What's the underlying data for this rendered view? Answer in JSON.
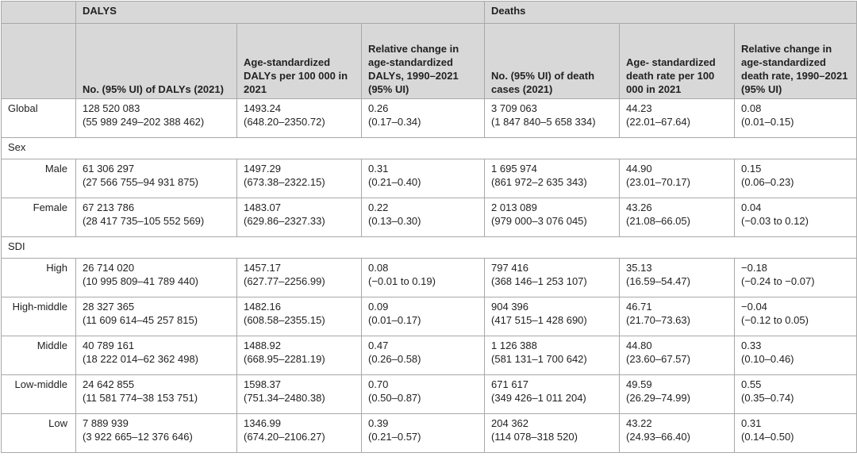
{
  "table": {
    "groups": [
      "DALYS",
      "Deaths"
    ],
    "columns": [
      "No. (95% UI) of DALYs (2021)",
      "Age-standardized DALYs per 100 000 in 2021",
      "Relative change in age-standardized DALYs, 1990–2021 (95% UI)",
      "No. (95% UI) of death cases (2021)",
      "Age- standardized death rate per 100 000 in 2021",
      "Relative change in age-standardized death rate, 1990–2021 (95% UI)"
    ],
    "rows": [
      {
        "label": "Global",
        "cells": [
          [
            "128 520 083",
            "(55 989 249–202 388 462)"
          ],
          [
            "1493.24",
            "(648.20–2350.72)"
          ],
          [
            "0.26",
            "(0.17–0.34)"
          ],
          [
            "3 709 063",
            "(1 847 840–5 658 334)"
          ],
          [
            "44.23",
            "(22.01–67.64)"
          ],
          [
            "0.08",
            "(0.01–0.15)"
          ]
        ]
      },
      {
        "section": "Sex"
      },
      {
        "label": "Male",
        "cells": [
          [
            "61 306 297",
            "(27 566 755–94 931 875)"
          ],
          [
            "1497.29",
            "(673.38–2322.15)"
          ],
          [
            "0.31",
            "(0.21–0.40)"
          ],
          [
            "1 695 974",
            "(861 972–2 635 343)"
          ],
          [
            "44.90",
            "(23.01–70.17)"
          ],
          [
            "0.15",
            "(0.06–0.23)"
          ]
        ]
      },
      {
        "label": "Female",
        "cells": [
          [
            "67 213 786",
            "(28 417 735–105 552 569)"
          ],
          [
            "1483.07",
            "(629.86–2327.33)"
          ],
          [
            "0.22",
            "(0.13–0.30)"
          ],
          [
            "2 013 089",
            "(979 000–3 076 045)"
          ],
          [
            "43.26",
            "(21.08–66.05)"
          ],
          [
            "0.04",
            "(−0.03 to 0.12)"
          ]
        ]
      },
      {
        "section": "SDI"
      },
      {
        "label": "High",
        "cells": [
          [
            "26 714 020",
            "(10 995 809–41 789 440)"
          ],
          [
            "1457.17",
            "(627.77–2256.99)"
          ],
          [
            "0.08",
            "(−0.01 to 0.19)"
          ],
          [
            "797 416",
            "(368 146–1 253 107)"
          ],
          [
            "35.13",
            "(16.59–54.47)"
          ],
          [
            "−0.18",
            "(−0.24 to −0.07)"
          ]
        ]
      },
      {
        "label": "High-middle",
        "cells": [
          [
            "28 327 365",
            "(11 609 614–45 257 815)"
          ],
          [
            "1482.16",
            "(608.58–2355.15)"
          ],
          [
            "0.09",
            "(0.01–0.17)"
          ],
          [
            "904 396",
            "(417 515–1 428 690)"
          ],
          [
            "46.71",
            "(21.70–73.63)"
          ],
          [
            "−0.04",
            "(−0.12 to 0.05)"
          ]
        ]
      },
      {
        "label": "Middle",
        "cells": [
          [
            "40 789 161",
            "(18 222 014–62 362 498)"
          ],
          [
            "1488.92",
            "(668.95–2281.19)"
          ],
          [
            "0.47",
            "(0.26–0.58)"
          ],
          [
            "1 126 388",
            "(581 131–1 700 642)"
          ],
          [
            "44.80",
            "(23.60–67.57)"
          ],
          [
            "0.33",
            "(0.10–0.46)"
          ]
        ]
      },
      {
        "label": "Low-middle",
        "cells": [
          [
            "24 642 855",
            "(11 581 774–38 153 751)"
          ],
          [
            "1598.37",
            "(751.34–2480.38)"
          ],
          [
            "0.70",
            "(0.50–0.87)"
          ],
          [
            "671 617",
            "(349 426–1 011 204)"
          ],
          [
            "49.59",
            "(26.29–74.99)"
          ],
          [
            "0.55",
            "(0.35–0.74)"
          ]
        ]
      },
      {
        "label": "Low",
        "cells": [
          [
            "7 889 939",
            "(3 922 665–12 376 646)"
          ],
          [
            "1346.99",
            "(674.20–2106.27)"
          ],
          [
            "0.39",
            "(0.21–0.57)"
          ],
          [
            "204 362",
            "(114 078–318 520)"
          ],
          [
            "43.22",
            "(24.93–66.40)"
          ],
          [
            "0.31",
            "(0.14–0.50)"
          ]
        ]
      }
    ]
  }
}
